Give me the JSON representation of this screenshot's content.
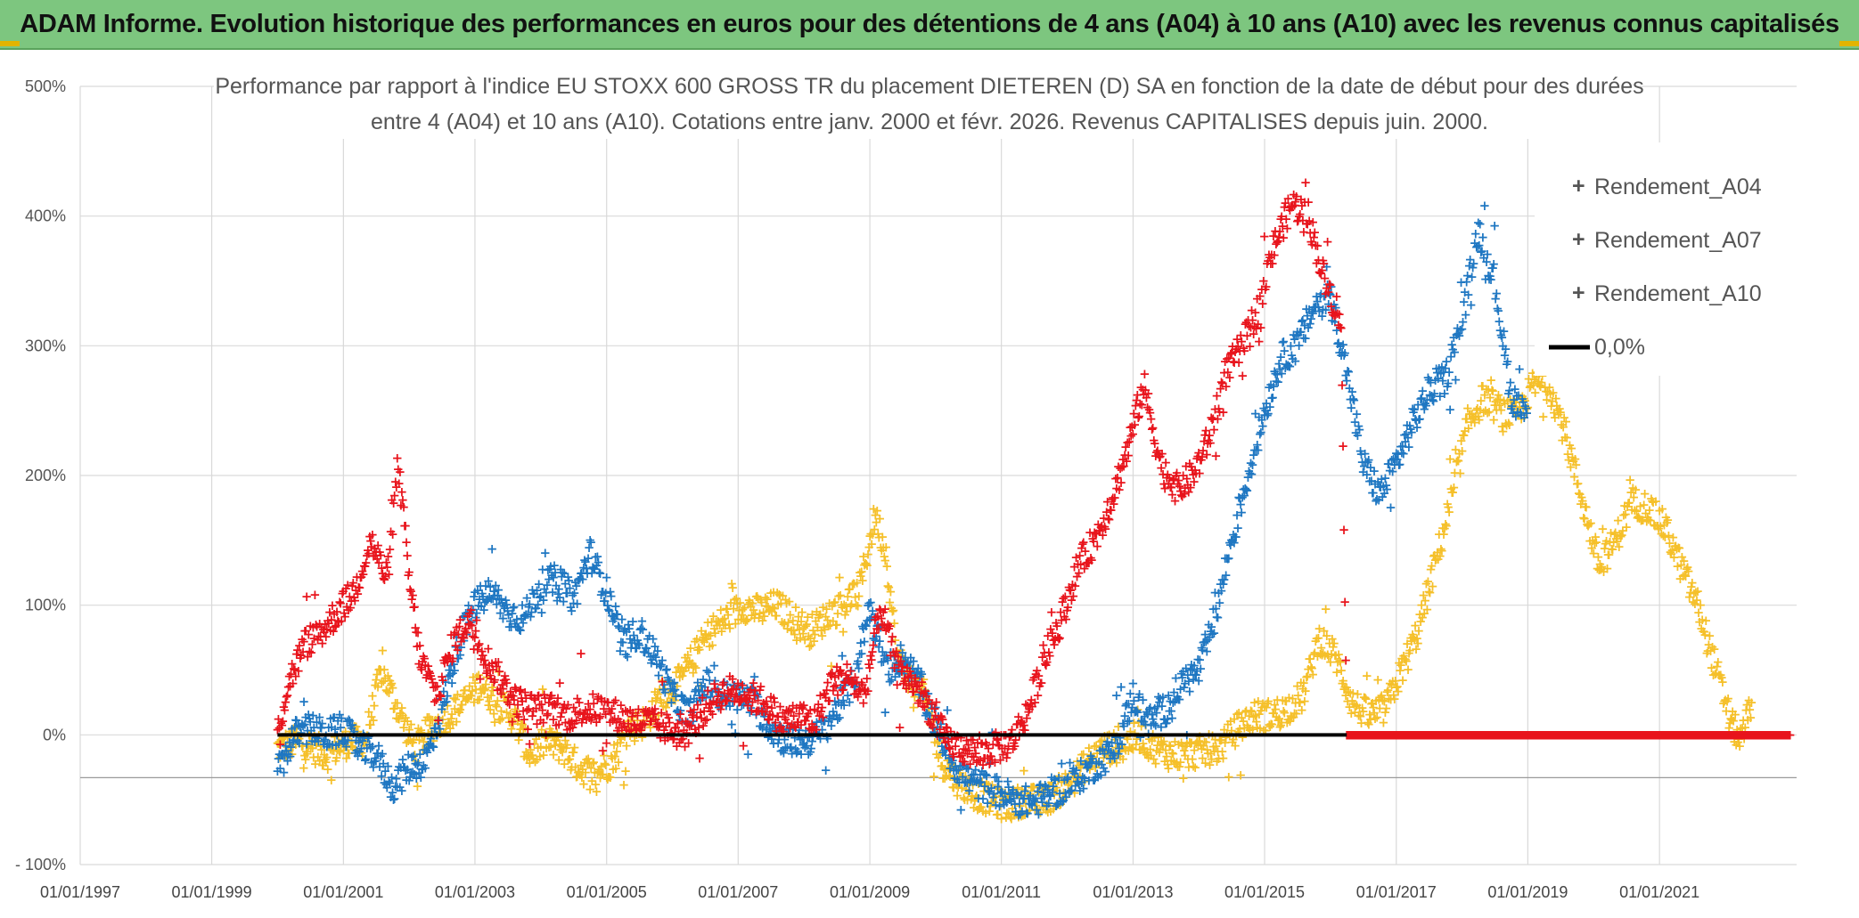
{
  "banner": {
    "text": "ADAM Informe. Evolution historique des performances en euros pour des détentions de 4 ans (A04) à 10 ans (A10) avec les revenus connus capitalisés"
  },
  "colors": {
    "banner_bg": "#7dc67f",
    "A04": "#f5c02a",
    "A07": "#1f77c2",
    "A10": "#e8141c",
    "zero_line": "#000000",
    "grid": "#d9d9d9"
  },
  "chart_data": {
    "type": "scatter",
    "title_lines": [
      "Performance par rapport à l'indice EU STOXX 600 GROSS TR  du placement DIETEREN (D) SA en fonction de la date de début pour des durées",
      "entre 4 (A04) et 10 ans (A10). Cotations entre janv. 2000 et févr. 2026. Revenus CAPITALISES depuis juin. 2000."
    ],
    "x_ticks": [
      "01/01/1997",
      "01/01/1999",
      "01/01/2001",
      "01/01/2003",
      "01/01/2005",
      "01/01/2007",
      "01/01/2009",
      "01/01/2011",
      "01/01/2013",
      "01/01/2015",
      "01/01/2017",
      "01/01/2019",
      "01/01/2021"
    ],
    "xlim": [
      "1997-01-01",
      "2023-02-01"
    ],
    "y_ticks": [
      "- 100%",
      "0%",
      "100%",
      "200%",
      "300%",
      "400%",
      "500%"
    ],
    "ylim": [
      -100,
      500
    ],
    "grid": true,
    "legend_position": "top-right",
    "series": [
      {
        "name": "Rendement_A04",
        "key": "A04",
        "points": [
          [
            "2000-01-01",
            -10
          ],
          [
            "2000-05-01",
            -5
          ],
          [
            "2000-10-01",
            -15
          ],
          [
            "2001-02-01",
            -5
          ],
          [
            "2001-05-01",
            -5
          ],
          [
            "2001-08-01",
            50
          ],
          [
            "2001-11-01",
            20
          ],
          [
            "2002-02-01",
            -10
          ],
          [
            "2002-05-01",
            5
          ],
          [
            "2002-08-01",
            15
          ],
          [
            "2002-11-01",
            25
          ],
          [
            "2003-02-01",
            40
          ],
          [
            "2003-05-01",
            25
          ],
          [
            "2003-08-01",
            15
          ],
          [
            "2003-11-01",
            -15
          ],
          [
            "2004-02-01",
            -5
          ],
          [
            "2004-05-01",
            -10
          ],
          [
            "2004-08-01",
            -25
          ],
          [
            "2004-11-01",
            -30
          ],
          [
            "2005-02-01",
            -20
          ],
          [
            "2005-05-01",
            5
          ],
          [
            "2005-08-01",
            10
          ],
          [
            "2005-11-01",
            30
          ],
          [
            "2006-02-01",
            40
          ],
          [
            "2006-05-01",
            60
          ],
          [
            "2006-08-01",
            80
          ],
          [
            "2006-11-01",
            90
          ],
          [
            "2007-02-01",
            100
          ],
          [
            "2007-05-01",
            95
          ],
          [
            "2007-08-01",
            100
          ],
          [
            "2007-11-01",
            90
          ],
          [
            "2008-02-01",
            80
          ],
          [
            "2008-05-01",
            90
          ],
          [
            "2008-08-01",
            100
          ],
          [
            "2008-11-01",
            110
          ],
          [
            "2009-02-01",
            170
          ],
          [
            "2009-04-01",
            140
          ],
          [
            "2009-06-01",
            60
          ],
          [
            "2009-09-01",
            40
          ],
          [
            "2009-11-01",
            30
          ],
          [
            "2010-02-01",
            -20
          ],
          [
            "2010-05-01",
            -35
          ],
          [
            "2010-08-01",
            -45
          ],
          [
            "2010-11-01",
            -50
          ],
          [
            "2011-02-01",
            -55
          ],
          [
            "2011-05-01",
            -50
          ],
          [
            "2011-08-01",
            -52
          ],
          [
            "2011-11-01",
            -45
          ],
          [
            "2012-02-01",
            -35
          ],
          [
            "2012-05-01",
            -20
          ],
          [
            "2012-08-01",
            -10
          ],
          [
            "2012-11-01",
            -10
          ],
          [
            "2013-02-01",
            0
          ],
          [
            "2013-05-01",
            -10
          ],
          [
            "2013-08-01",
            -15
          ],
          [
            "2013-11-01",
            -15
          ],
          [
            "2014-02-01",
            -12
          ],
          [
            "2014-05-01",
            -10
          ],
          [
            "2014-08-01",
            5
          ],
          [
            "2014-11-01",
            15
          ],
          [
            "2015-02-01",
            15
          ],
          [
            "2015-05-01",
            20
          ],
          [
            "2015-08-01",
            30
          ],
          [
            "2015-11-01",
            75
          ],
          [
            "2016-02-01",
            60
          ],
          [
            "2016-05-01",
            25
          ],
          [
            "2016-08-01",
            15
          ],
          [
            "2016-11-01",
            20
          ],
          [
            "2017-02-01",
            50
          ],
          [
            "2017-05-01",
            80
          ],
          [
            "2017-08-01",
            130
          ],
          [
            "2017-11-01",
            180
          ],
          [
            "2018-02-01",
            240
          ],
          [
            "2018-05-01",
            260
          ],
          [
            "2018-08-01",
            250
          ],
          [
            "2018-11-01",
            245
          ],
          [
            "2019-02-01",
            270
          ],
          [
            "2019-05-01",
            270
          ],
          [
            "2019-08-01",
            230
          ],
          [
            "2019-11-01",
            180
          ],
          [
            "2020-02-01",
            130
          ],
          [
            "2020-05-01",
            150
          ],
          [
            "2020-08-01",
            180
          ],
          [
            "2020-11-01",
            175
          ],
          [
            "2021-02-01",
            160
          ],
          [
            "2021-05-01",
            130
          ],
          [
            "2021-08-01",
            100
          ],
          [
            "2021-11-01",
            55
          ],
          [
            "2022-02-01",
            10
          ],
          [
            "2022-04-01",
            -5
          ],
          [
            "2022-06-01",
            30
          ]
        ]
      },
      {
        "name": "Rendement_A07",
        "key": "A07",
        "points": [
          [
            "2000-01-01",
            -30
          ],
          [
            "2000-04-01",
            0
          ],
          [
            "2000-07-01",
            5
          ],
          [
            "2000-10-01",
            0
          ],
          [
            "2001-01-01",
            5
          ],
          [
            "2001-04-01",
            -10
          ],
          [
            "2001-07-01",
            -15
          ],
          [
            "2001-10-01",
            -40
          ],
          [
            "2002-01-01",
            -25
          ],
          [
            "2002-04-01",
            -20
          ],
          [
            "2002-07-01",
            20
          ],
          [
            "2002-10-01",
            70
          ],
          [
            "2003-01-01",
            100
          ],
          [
            "2003-04-01",
            110
          ],
          [
            "2003-07-01",
            95
          ],
          [
            "2003-10-01",
            90
          ],
          [
            "2004-01-01",
            115
          ],
          [
            "2004-04-01",
            120
          ],
          [
            "2004-07-01",
            105
          ],
          [
            "2004-10-01",
            140
          ],
          [
            "2005-01-01",
            110
          ],
          [
            "2005-04-01",
            70
          ],
          [
            "2005-07-01",
            80
          ],
          [
            "2005-10-01",
            60
          ],
          [
            "2006-01-01",
            30
          ],
          [
            "2006-04-01",
            15
          ],
          [
            "2006-07-01",
            40
          ],
          [
            "2006-10-01",
            30
          ],
          [
            "2007-01-01",
            30
          ],
          [
            "2007-04-01",
            25
          ],
          [
            "2007-07-01",
            5
          ],
          [
            "2007-10-01",
            -5
          ],
          [
            "2008-01-01",
            -5
          ],
          [
            "2008-04-01",
            0
          ],
          [
            "2008-07-01",
            20
          ],
          [
            "2008-10-01",
            40
          ],
          [
            "2009-01-01",
            100
          ],
          [
            "2009-04-01",
            50
          ],
          [
            "2009-07-01",
            60
          ],
          [
            "2009-10-01",
            40
          ],
          [
            "2010-01-01",
            10
          ],
          [
            "2010-04-01",
            -20
          ],
          [
            "2010-07-01",
            -35
          ],
          [
            "2010-10-01",
            -40
          ],
          [
            "2011-01-01",
            -45
          ],
          [
            "2011-04-01",
            -50
          ],
          [
            "2011-07-01",
            -52
          ],
          [
            "2011-10-01",
            -45
          ],
          [
            "2012-01-01",
            -40
          ],
          [
            "2012-04-01",
            -30
          ],
          [
            "2012-07-01",
            -20
          ],
          [
            "2012-10-01",
            -10
          ],
          [
            "2013-01-01",
            30
          ],
          [
            "2013-04-01",
            10
          ],
          [
            "2013-07-01",
            20
          ],
          [
            "2013-10-01",
            40
          ],
          [
            "2014-01-01",
            50
          ],
          [
            "2014-04-01",
            90
          ],
          [
            "2014-07-01",
            150
          ],
          [
            "2014-10-01",
            200
          ],
          [
            "2015-01-01",
            250
          ],
          [
            "2015-04-01",
            290
          ],
          [
            "2015-07-01",
            300
          ],
          [
            "2015-10-01",
            330
          ],
          [
            "2016-01-01",
            340
          ],
          [
            "2016-04-01",
            280
          ],
          [
            "2016-07-01",
            210
          ],
          [
            "2016-10-01",
            185
          ],
          [
            "2017-01-01",
            210
          ],
          [
            "2017-04-01",
            240
          ],
          [
            "2017-07-01",
            265
          ],
          [
            "2017-10-01",
            275
          ],
          [
            "2018-01-01",
            320
          ],
          [
            "2018-04-01",
            390
          ],
          [
            "2018-07-01",
            350
          ],
          [
            "2018-10-01",
            260
          ],
          [
            "2019-01-01",
            250
          ]
        ]
      },
      {
        "name": "Rendement_A10",
        "key": "A10",
        "points": [
          [
            "2000-01-01",
            0
          ],
          [
            "2000-03-01",
            40
          ],
          [
            "2000-06-01",
            70
          ],
          [
            "2000-09-01",
            80
          ],
          [
            "2000-12-01",
            95
          ],
          [
            "2001-03-01",
            110
          ],
          [
            "2001-06-01",
            150
          ],
          [
            "2001-09-01",
            120
          ],
          [
            "2001-11-01",
            210
          ],
          [
            "2002-01-01",
            120
          ],
          [
            "2002-03-01",
            60
          ],
          [
            "2002-06-01",
            30
          ],
          [
            "2002-09-01",
            70
          ],
          [
            "2002-12-01",
            90
          ],
          [
            "2003-03-01",
            60
          ],
          [
            "2003-06-01",
            40
          ],
          [
            "2003-09-01",
            25
          ],
          [
            "2003-12-01",
            20
          ],
          [
            "2004-03-01",
            20
          ],
          [
            "2004-06-01",
            15
          ],
          [
            "2004-09-01",
            20
          ],
          [
            "2004-12-01",
            20
          ],
          [
            "2005-03-01",
            15
          ],
          [
            "2005-06-01",
            10
          ],
          [
            "2005-09-01",
            10
          ],
          [
            "2005-12-01",
            5
          ],
          [
            "2006-03-01",
            0
          ],
          [
            "2006-06-01",
            15
          ],
          [
            "2006-09-01",
            30
          ],
          [
            "2006-12-01",
            35
          ],
          [
            "2007-03-01",
            30
          ],
          [
            "2007-06-01",
            25
          ],
          [
            "2007-09-01",
            10
          ],
          [
            "2007-12-01",
            15
          ],
          [
            "2008-03-01",
            10
          ],
          [
            "2008-06-01",
            40
          ],
          [
            "2008-09-01",
            45
          ],
          [
            "2008-12-01",
            30
          ],
          [
            "2009-03-01",
            100
          ],
          [
            "2009-06-01",
            50
          ],
          [
            "2009-09-01",
            40
          ],
          [
            "2009-12-01",
            20
          ],
          [
            "2010-03-01",
            -5
          ],
          [
            "2010-06-01",
            -10
          ],
          [
            "2010-09-01",
            -15
          ],
          [
            "2010-12-01",
            -10
          ],
          [
            "2011-03-01",
            -5
          ],
          [
            "2011-06-01",
            20
          ],
          [
            "2011-09-01",
            60
          ],
          [
            "2011-12-01",
            90
          ],
          [
            "2012-03-01",
            130
          ],
          [
            "2012-06-01",
            150
          ],
          [
            "2012-09-01",
            180
          ],
          [
            "2012-12-01",
            220
          ],
          [
            "2013-03-01",
            270
          ],
          [
            "2013-06-01",
            210
          ],
          [
            "2013-09-01",
            190
          ],
          [
            "2013-12-01",
            200
          ],
          [
            "2014-03-01",
            230
          ],
          [
            "2014-06-01",
            280
          ],
          [
            "2014-09-01",
            300
          ],
          [
            "2014-12-01",
            330
          ],
          [
            "2015-03-01",
            380
          ],
          [
            "2015-06-01",
            410
          ],
          [
            "2015-09-01",
            400
          ],
          [
            "2015-12-01",
            350
          ],
          [
            "2016-03-01",
            320
          ],
          [
            "2016-04-01",
            0
          ],
          [
            "2017-01-01",
            0
          ],
          [
            "2018-01-01",
            0
          ],
          [
            "2019-01-01",
            0
          ],
          [
            "2020-01-01",
            0
          ],
          [
            "2021-01-01",
            0
          ],
          [
            "2022-01-01",
            0
          ],
          [
            "2023-01-01",
            0
          ]
        ]
      }
    ],
    "reference_line": {
      "name": "0,0%",
      "y": 0,
      "x_from": "2000-01-01",
      "x_to": "2016-04-01"
    }
  }
}
